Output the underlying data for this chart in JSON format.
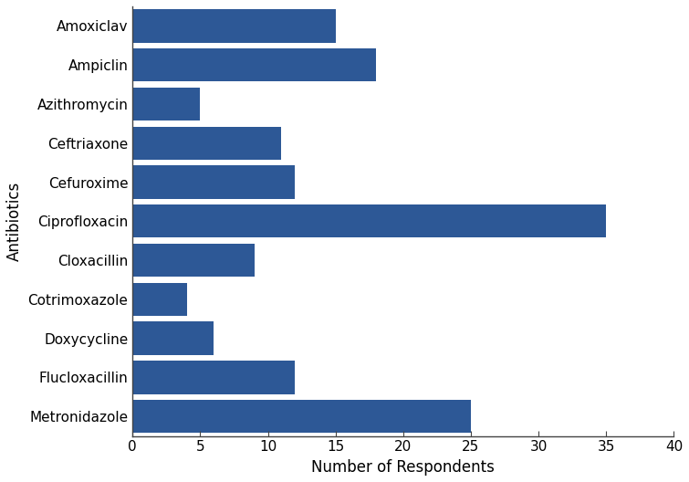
{
  "categories": [
    "Metronidazole",
    "Flucloxacillin",
    "Doxycycline",
    "Cotrimoxazole",
    "Cloxacillin",
    "Ciprofloxacin",
    "Cefuroxime",
    "Ceftriaxone",
    "Azithromycin",
    "Ampiclin",
    "Amoxiclav"
  ],
  "values": [
    25,
    12,
    6,
    4,
    9,
    35,
    12,
    11,
    5,
    18,
    15
  ],
  "bar_color": "#2d5896",
  "xlabel": "Number of Respondents",
  "ylabel": "Antibiotics",
  "xlim": [
    0,
    40
  ],
  "xticks": [
    0,
    5,
    10,
    15,
    20,
    25,
    30,
    35,
    40
  ],
  "bar_height": 0.85,
  "figsize": [
    7.55,
    5.28
  ],
  "dpi": 100,
  "ylabel_fontsize": 12,
  "xlabel_fontsize": 12,
  "tick_fontsize": 11
}
